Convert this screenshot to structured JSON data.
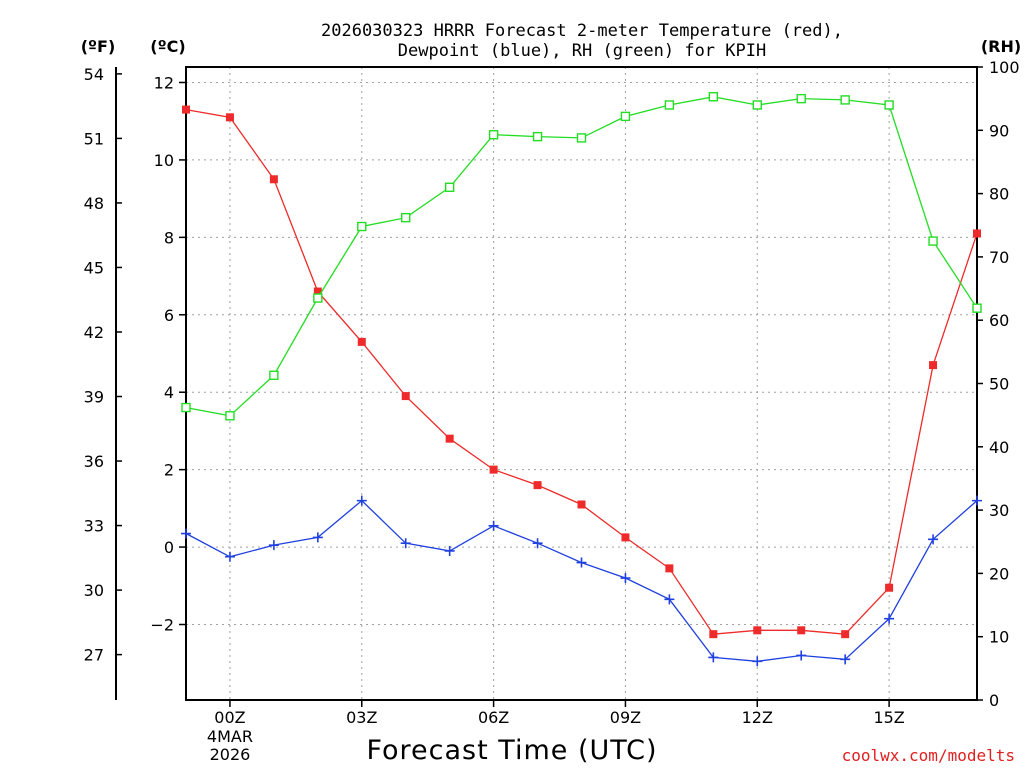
{
  "chart_data": {
    "type": "line",
    "title": [
      "2026030323 HRRR Forecast 2-meter Temperature (red),",
      "Dewpoint (blue), RH (green) for KPIH"
    ],
    "xlabel": "Forecast Time (UTC)",
    "credit": "coolwx.com/modelts",
    "units": {
      "fahrenheit": "(ºF)",
      "celsius": "(ºC)",
      "rh": "(RH)"
    },
    "x": [
      -1,
      0,
      1,
      2,
      3,
      4,
      5,
      6,
      7,
      8,
      9,
      10,
      11,
      12,
      13,
      14,
      15,
      16,
      17
    ],
    "xlim": [
      -1,
      17
    ],
    "x_ticks": [
      {
        "x": 0,
        "label": "00Z",
        "sub": [
          "4MAR",
          "2026"
        ]
      },
      {
        "x": 3,
        "label": "03Z"
      },
      {
        "x": 6,
        "label": "06Z"
      },
      {
        "x": 9,
        "label": "09Z"
      },
      {
        "x": 12,
        "label": "12Z"
      },
      {
        "x": 15,
        "label": "15Z"
      }
    ],
    "y_celsius": {
      "ylim": [
        -3.95,
        12.4
      ],
      "ticks": [
        12,
        10,
        8,
        6,
        4,
        2,
        0,
        -2
      ],
      "tick_labels": [
        "12",
        "10",
        "8",
        "6",
        "4",
        "2",
        "0",
        "−2"
      ]
    },
    "y_fahrenheit": {
      "ticks": [
        54,
        51,
        48,
        45,
        42,
        39,
        36,
        33,
        30,
        27
      ],
      "tick_labels": [
        "54",
        "51",
        "48",
        "45",
        "42",
        "39",
        "36",
        "33",
        "30",
        "27"
      ]
    },
    "y_rh": {
      "ylim": [
        0,
        100
      ],
      "ticks": [
        100,
        90,
        80,
        70,
        60,
        50,
        40,
        30,
        20,
        10,
        0
      ],
      "tick_labels": [
        "100",
        "90",
        "80",
        "70",
        "60",
        "50",
        "40",
        "30",
        "20",
        "10",
        "0"
      ]
    },
    "grid": true,
    "series": [
      {
        "name": "Temperature",
        "axis": "celsius",
        "color": "#ee2a2a",
        "marker": "filled-square",
        "values": [
          11.3,
          11.1,
          9.5,
          6.6,
          5.3,
          3.9,
          2.8,
          2.0,
          1.6,
          1.1,
          0.25,
          -0.55,
          -2.25,
          -2.15,
          -2.15,
          -2.25,
          -1.05,
          4.7,
          8.1
        ]
      },
      {
        "name": "Dewpoint",
        "axis": "celsius",
        "color": "#2040e0",
        "marker": "plus",
        "values": [
          0.35,
          -0.25,
          0.05,
          0.25,
          1.2,
          0.1,
          -0.1,
          0.55,
          0.1,
          -0.4,
          -0.8,
          -1.35,
          -2.85,
          -2.95,
          -2.8,
          -2.9,
          -1.85,
          0.2,
          1.2
        ]
      },
      {
        "name": "RH",
        "axis": "rh",
        "color": "#22dd22",
        "marker": "open-square",
        "values": [
          46.2,
          44.9,
          51.3,
          63.5,
          74.8,
          76.2,
          81.0,
          89.3,
          89.0,
          88.8,
          92.2,
          94.0,
          95.3,
          94.0,
          95.0,
          94.8,
          94.0,
          72.5,
          61.9
        ]
      }
    ]
  }
}
